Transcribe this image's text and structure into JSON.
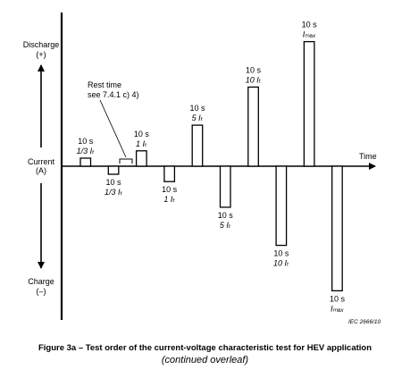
{
  "axis": {
    "discharge_label": "Discharge",
    "discharge_sign": "(+)",
    "current_label": "Current",
    "current_unit": "(A)",
    "charge_label": "Charge",
    "charge_sign": "(–)",
    "time_label": "Time"
  },
  "rest_note": {
    "line1": "Rest time",
    "line2": "see 7.4.1 c) 4)"
  },
  "pulses": [
    {
      "direction": "discharge",
      "duration": "10 s",
      "magnitude": "1/3 Iₜ",
      "level_rel": 0.11
    },
    {
      "direction": "charge",
      "duration": "10 s",
      "magnitude": "1/3 Iₜ",
      "level_rel": 0.11
    },
    {
      "direction": "discharge",
      "duration": "10 s",
      "magnitude": "1 Iₜ",
      "level_rel": 0.21
    },
    {
      "direction": "charge",
      "duration": "10 s",
      "magnitude": "1 Iₜ",
      "level_rel": 0.21
    },
    {
      "direction": "discharge",
      "duration": "10 s",
      "magnitude": "5 Iₜ",
      "level_rel": 0.56
    },
    {
      "direction": "charge",
      "duration": "10 s",
      "magnitude": "5 Iₜ",
      "level_rel": 0.56
    },
    {
      "direction": "discharge",
      "duration": "10 s",
      "magnitude": "10 Iₜ",
      "level_rel": 1.08
    },
    {
      "direction": "charge",
      "duration": "10 s",
      "magnitude": "10 Iₜ",
      "level_rel": 1.08
    },
    {
      "direction": "discharge",
      "duration": "10 s",
      "magnitude": "Iₘₐₓ",
      "level_rel": 1.7
    },
    {
      "direction": "charge",
      "duration": "10 s",
      "magnitude": "Iₘₐₓ",
      "level_rel": 1.7
    }
  ],
  "reference": "IEC   2666/10",
  "caption": {
    "line1": "Figure 3a – Test order of the current-voltage characteristic test for HEV application",
    "line2": "(continued overleaf)"
  }
}
